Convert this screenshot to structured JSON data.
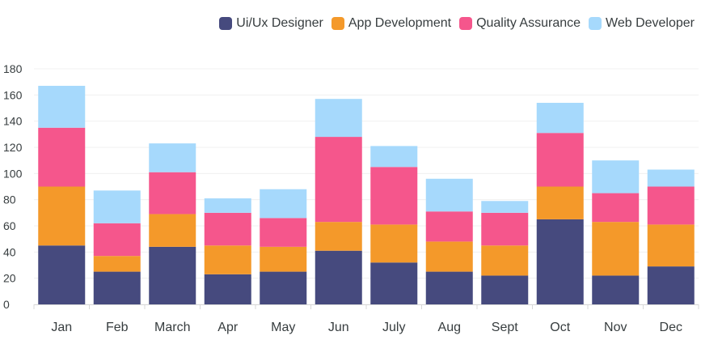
{
  "chart_data": {
    "type": "bar",
    "stacked": true,
    "categories": [
      "Jan",
      "Feb",
      "March",
      "Apr",
      "May",
      "Jun",
      "July",
      "Aug",
      "Sept",
      "Oct",
      "Nov",
      "Dec"
    ],
    "series": [
      {
        "name": "Ui/Ux Designer",
        "color": "#464a7e",
        "values": [
          45,
          25,
          44,
          23,
          25,
          41,
          32,
          25,
          22,
          65,
          22,
          29
        ]
      },
      {
        "name": "App Development",
        "color": "#f4992a",
        "values": [
          45,
          12,
          25,
          22,
          19,
          22,
          29,
          23,
          23,
          25,
          41,
          32
        ]
      },
      {
        "name": "Quality Assurance",
        "color": "#f5568c",
        "values": [
          45,
          25,
          32,
          25,
          22,
          65,
          44,
          23,
          25,
          41,
          22,
          29
        ]
      },
      {
        "name": "Web Developer",
        "color": "#a6d9fc",
        "values": [
          32,
          25,
          22,
          11,
          22,
          29,
          16,
          25,
          9,
          23,
          25,
          13
        ]
      }
    ],
    "y_ticks": [
      0,
      20,
      40,
      60,
      80,
      100,
      120,
      140,
      160,
      180
    ],
    "ylim": [
      0,
      180
    ],
    "grid": true,
    "legend_position": "top-right",
    "title": "",
    "xlabel": "",
    "ylabel": ""
  }
}
